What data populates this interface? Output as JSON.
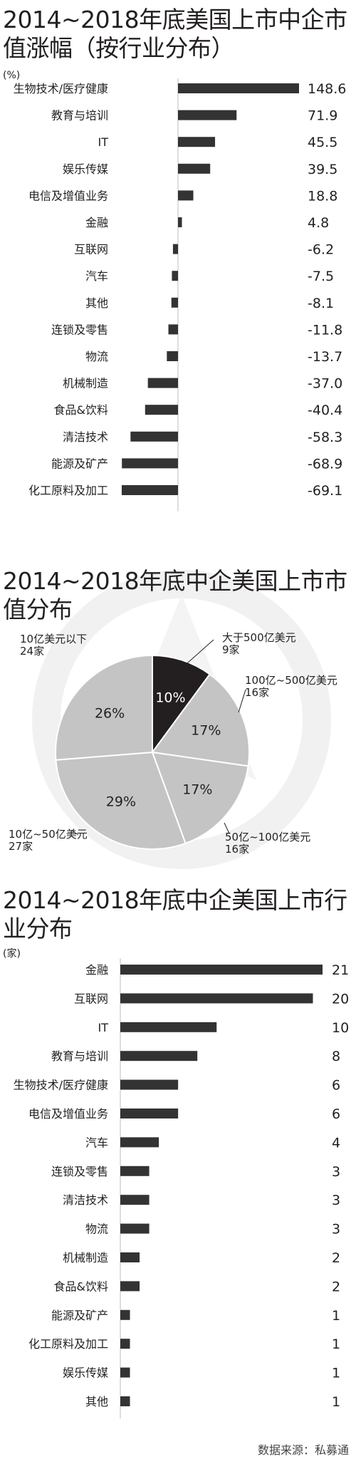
{
  "chart_data": [
    {
      "type": "bar",
      "title": "2014~2018年底美国上市中企市值涨幅（按行业分布）",
      "unit": "(%)",
      "categories": [
        "生物技术/医疗健康",
        "教育与培训",
        "IT",
        "娱乐传媒",
        "电信及增值业务",
        "金融",
        "互联网",
        "汽车",
        "其他",
        "连锁及零售",
        "物流",
        "机械制造",
        "食品&饮料",
        "清洁技术",
        "能源及矿产",
        "化工原料及加工"
      ],
      "values": [
        148.6,
        71.9,
        45.5,
        39.5,
        18.8,
        4.8,
        -6.2,
        -7.5,
        -8.1,
        -11.8,
        -13.7,
        -37.0,
        -40.4,
        -58.3,
        -68.9,
        -69.1
      ],
      "value_labels": [
        "148.6",
        "71.9",
        "45.5",
        "39.5",
        "18.8",
        "4.8",
        "-6.2",
        "-7.5",
        "-8.1",
        "-11.8",
        "-13.7",
        "-37.0",
        "-40.4",
        "-58.3",
        "-68.9",
        "-69.1"
      ],
      "bar_color": "#333333"
    },
    {
      "type": "pie",
      "title": "2014~2018年底中企美国上市市值分布",
      "slices": [
        {
          "name": "大于500亿美元",
          "count": "9家",
          "value": 10,
          "label": "10%",
          "color": "#231f20",
          "text_color": "#ffffff"
        },
        {
          "name": "100亿~500亿美元",
          "count": "16家",
          "value": 17,
          "label": "17%",
          "color": "#c4c4c4",
          "text_color": "#231f20"
        },
        {
          "name": "50亿~100亿美元",
          "count": "16家",
          "value": 17,
          "label": "17%",
          "color": "#c4c4c4",
          "text_color": "#231f20"
        },
        {
          "name": "10亿~50亿美元",
          "count": "27家",
          "value": 29,
          "label": "29%",
          "color": "#c4c4c4",
          "text_color": "#231f20"
        },
        {
          "name": "10亿美元以下",
          "count": "24家",
          "value": 26,
          "label": "26%",
          "color": "#c4c4c4",
          "text_color": "#231f20"
        }
      ]
    },
    {
      "type": "bar",
      "title": "2014~2018年底中企美国上市行业分布",
      "unit": "(家)",
      "categories": [
        "金融",
        "互联网",
        "IT",
        "教育与培训",
        "生物技术/医疗健康",
        "电信及增值业务",
        "汽车",
        "连锁及零售",
        "清洁技术",
        "物流",
        "机械制造",
        "食品&饮料",
        "能源及矿产",
        "化工原料及加工",
        "娱乐传媒",
        "其他"
      ],
      "values": [
        21,
        20,
        10,
        8,
        6,
        6,
        4,
        3,
        3,
        3,
        2,
        2,
        1,
        1,
        1,
        1
      ],
      "value_labels": [
        "21",
        "20",
        "10",
        "8",
        "6",
        "6",
        "4",
        "3",
        "3",
        "3",
        "2",
        "2",
        "1",
        "1",
        "1",
        "1"
      ],
      "bar_color": "#333333"
    }
  ],
  "source": "数据来源：私募通"
}
